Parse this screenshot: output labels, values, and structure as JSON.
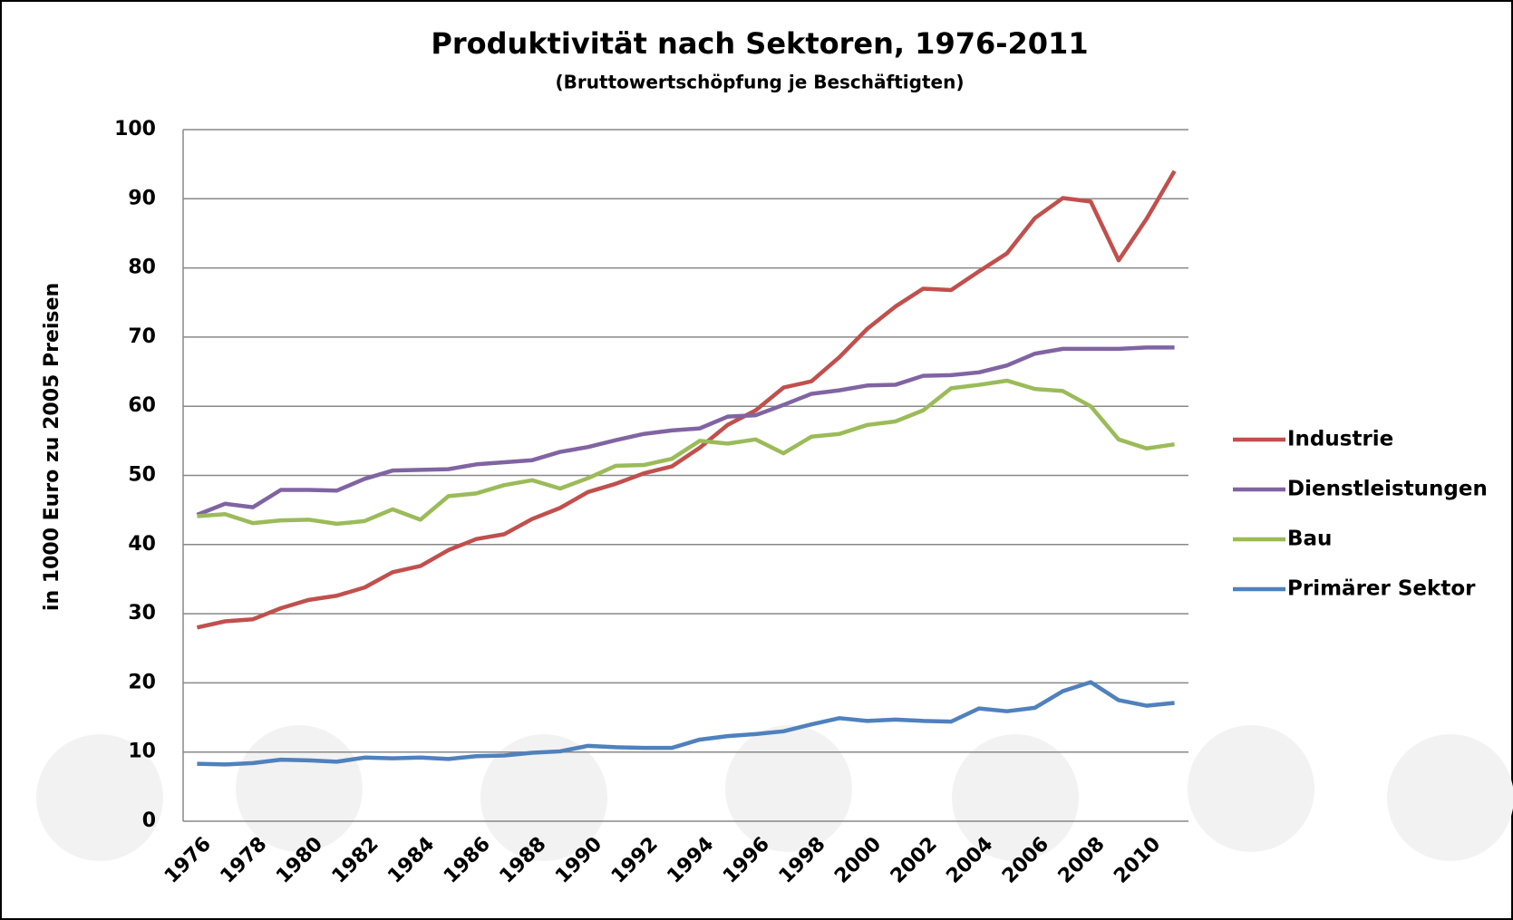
{
  "chart_data": {
    "type": "line",
    "title": "Produktivität nach Sektoren, 1976-2011",
    "subtitle": "(Bruttowertschöpfung je Beschäftigten)",
    "y_label": "in 1000 Euro zu 2005 Preisen",
    "categories": [
      "1976",
      null,
      "1978",
      null,
      "1980",
      null,
      "1982",
      null,
      "1984",
      null,
      "1986",
      null,
      "1988",
      null,
      "1990",
      null,
      "1992",
      null,
      "1994",
      null,
      "1996",
      null,
      "1998",
      null,
      "2000",
      null,
      "2002",
      null,
      "2004",
      null,
      "2006",
      null,
      "2008",
      null,
      "2010",
      null
    ],
    "series": [
      {
        "name": "Industrie",
        "color": "#c0504d",
        "values": [
          28,
          28.9,
          29.2,
          30.8,
          32,
          32.6,
          33.8,
          36,
          36.9,
          39.2,
          40.8,
          41.5,
          43.7,
          45.3,
          47.6,
          48.8,
          50.3,
          51.3,
          54,
          57.3,
          59.4,
          62.7,
          63.6,
          67.1,
          71.2,
          74.4,
          77,
          76.8,
          79.5,
          82.1,
          87.2,
          90.1,
          89.6,
          81.1,
          87.1,
          94
        ]
      },
      {
        "name": "Dienstleistungen",
        "color": "#8064a2",
        "values": [
          44.3,
          45.9,
          45.4,
          47.9,
          47.9,
          47.8,
          49.5,
          50.7,
          50.8,
          50.9,
          51.6,
          51.9,
          52.2,
          53.4,
          54.1,
          55.1,
          56,
          56.5,
          56.8,
          58.5,
          58.7,
          60.2,
          61.8,
          62.3,
          63,
          63.1,
          64.4,
          64.5,
          64.9,
          65.9,
          67.6,
          68.3,
          68.3,
          68.3,
          68.5,
          68.5
        ]
      },
      {
        "name": "Bau",
        "color": "#9bbb59",
        "values": [
          44.1,
          44.4,
          43.1,
          43.5,
          43.6,
          43,
          43.4,
          45.1,
          43.6,
          47,
          47.4,
          48.6,
          49.3,
          48.1,
          49.6,
          51.4,
          51.5,
          52.4,
          55,
          54.6,
          55.2,
          53.2,
          55.6,
          56,
          57.3,
          57.8,
          59.4,
          62.6,
          63.1,
          63.7,
          62.5,
          62.2,
          60,
          55.2,
          53.9,
          54.5
        ]
      },
      {
        "name": "Primärer Sektor",
        "color": "#4f81bd",
        "values": [
          8.3,
          8.2,
          8.4,
          8.9,
          8.8,
          8.6,
          9.2,
          9.1,
          9.2,
          9,
          9.4,
          9.5,
          9.9,
          10.1,
          10.9,
          10.7,
          10.6,
          10.6,
          11.8,
          12.3,
          12.6,
          13,
          14,
          14.9,
          14.5,
          14.7,
          14.5,
          14.4,
          16.3,
          15.9,
          16.4,
          18.8,
          20.1,
          17.5,
          16.7,
          17.1
        ]
      }
    ],
    "ylim": [
      0,
      100
    ],
    "yticks": [
      0,
      10,
      20,
      30,
      40,
      50,
      60,
      70,
      80,
      90,
      100
    ],
    "grid": true,
    "legend": "right"
  }
}
